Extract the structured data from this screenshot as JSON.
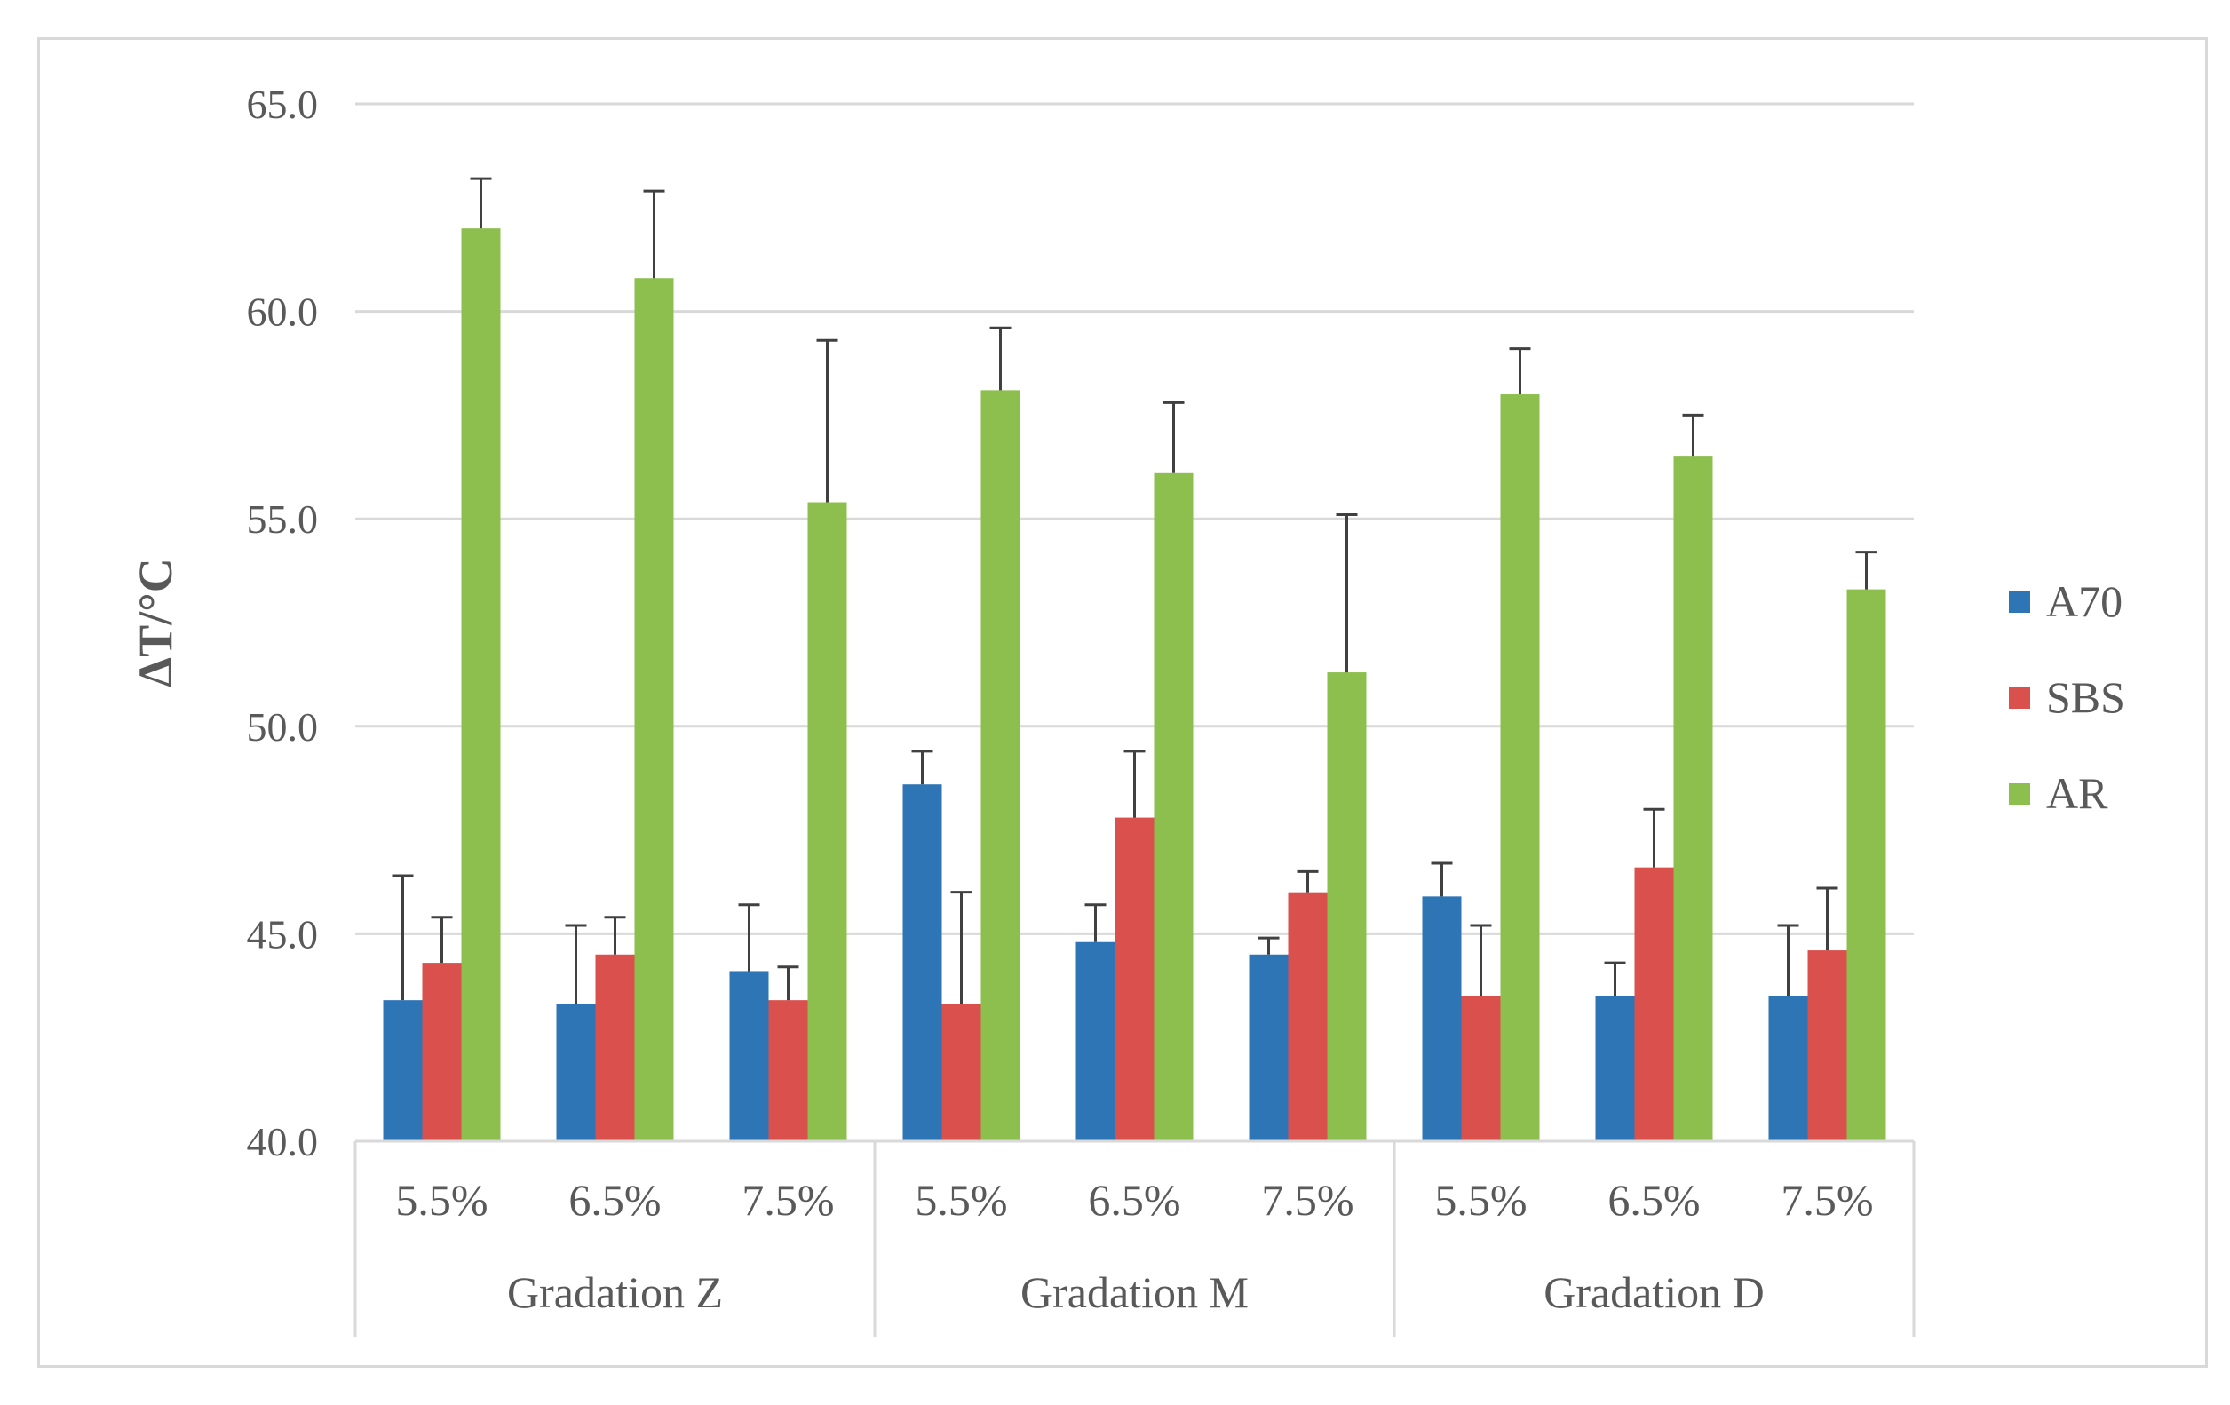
{
  "chart_data": {
    "type": "bar",
    "title": "",
    "xlabel": "",
    "ylabel": "ΔT/°C",
    "ylim": [
      40,
      65
    ],
    "yticks": [
      40,
      45,
      50,
      55,
      60,
      65
    ],
    "ytick_labels": [
      "40.0",
      "45.0",
      "50.0",
      "55.0",
      "60.0",
      "65.0"
    ],
    "grid": true,
    "legend_position": "right",
    "groups": [
      {
        "label": "Gradation Z",
        "categories": [
          "5.5%",
          "6.5%",
          "7.5%"
        ]
      },
      {
        "label": "Gradation M",
        "categories": [
          "5.5%",
          "6.5%",
          "7.5%"
        ]
      },
      {
        "label": "Gradation D",
        "categories": [
          "5.5%",
          "6.5%",
          "7.5%"
        ]
      }
    ],
    "series": [
      {
        "name": "A70",
        "color": "#2e75b6",
        "values": [
          43.4,
          43.3,
          44.1,
          48.6,
          44.8,
          44.5,
          45.9,
          43.5,
          43.5
        ],
        "errors": [
          3.0,
          1.9,
          1.6,
          0.8,
          0.9,
          0.4,
          0.8,
          0.8,
          1.7
        ]
      },
      {
        "name": "SBS",
        "color": "#d9504c",
        "values": [
          44.3,
          44.5,
          43.4,
          43.3,
          47.8,
          46.0,
          43.5,
          46.6,
          44.6
        ],
        "errors": [
          1.1,
          0.9,
          0.8,
          2.7,
          1.6,
          0.5,
          1.7,
          1.4,
          1.5
        ]
      },
      {
        "name": "AR",
        "color": "#8cbf4d",
        "values": [
          62.0,
          60.8,
          55.4,
          58.1,
          56.1,
          51.3,
          58.0,
          56.5,
          53.3
        ],
        "errors": [
          1.2,
          2.1,
          3.9,
          1.5,
          1.7,
          3.8,
          1.1,
          1.0,
          0.9
        ]
      }
    ]
  }
}
